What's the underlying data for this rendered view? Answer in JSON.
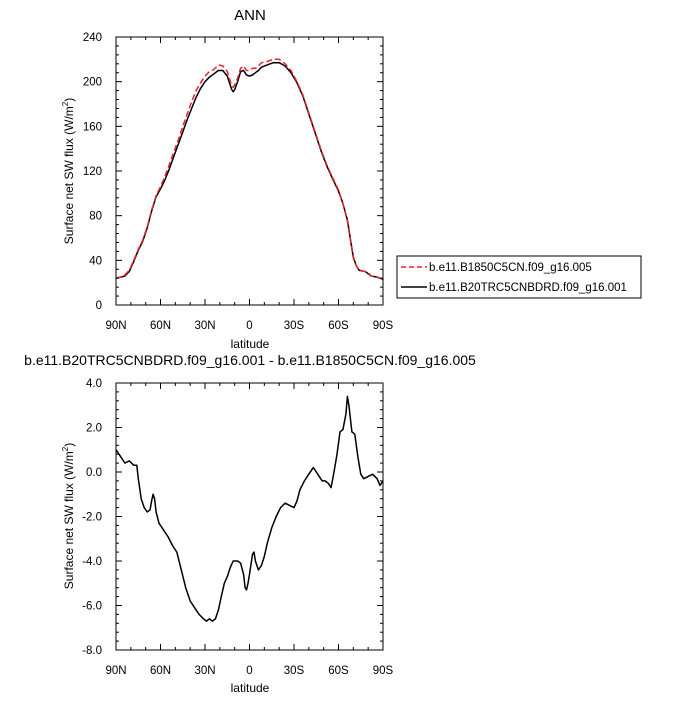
{
  "chart_data": [
    {
      "type": "line",
      "title": "ANN",
      "xlabel": "latitude",
      "ylabel": "Surface net SW flux (W/m²)",
      "ylabel_parts": [
        "Surface net SW flux (W/m",
        "2",
        ")"
      ],
      "x_ticks": [
        "90N",
        "60N",
        "30N",
        "0",
        "30S",
        "60S",
        "90S"
      ],
      "x_tick_values": [
        90,
        60,
        30,
        0,
        -30,
        -60,
        -90
      ],
      "xlim": [
        90,
        -90
      ],
      "ylim": [
        0,
        240
      ],
      "y_ticks": [
        "0",
        "40",
        "80",
        "120",
        "160",
        "200",
        "240"
      ],
      "y_tick_values": [
        0,
        40,
        80,
        120,
        160,
        200,
        240
      ],
      "legend": {
        "placement": "right"
      },
      "series": [
        {
          "name": "b.e11.B1850C5CN.f09_g16.005",
          "color": "#e8242b",
          "dash": "dashed",
          "points": [
            [
              90,
              24
            ],
            [
              87,
              25
            ],
            [
              84,
              27
            ],
            [
              81,
              31
            ],
            [
              78,
              40
            ],
            [
              75,
              50
            ],
            [
              72,
              58
            ],
            [
              69,
              70
            ],
            [
              66,
              85
            ],
            [
              63,
              98
            ],
            [
              60,
              106
            ],
            [
              57,
              115
            ],
            [
              54,
              126
            ],
            [
              51,
              137
            ],
            [
              48,
              148
            ],
            [
              45,
              160
            ],
            [
              42,
              171
            ],
            [
              39,
              182
            ],
            [
              36,
              192
            ],
            [
              33,
              199
            ],
            [
              30,
              205
            ],
            [
              27,
              209
            ],
            [
              24,
              211
            ],
            [
              21,
              215
            ],
            [
              18,
              214
            ],
            [
              15,
              209
            ],
            [
              12,
              196
            ],
            [
              11,
              195
            ],
            [
              10,
              197
            ],
            [
              8,
              203
            ],
            [
              6,
              212
            ],
            [
              4,
              214
            ],
            [
              2,
              210
            ],
            [
              0,
              210
            ],
            [
              -2,
              212
            ],
            [
              -4,
              212
            ],
            [
              -6,
              214
            ],
            [
              -8,
              217
            ],
            [
              -12,
              218
            ],
            [
              -16,
              220
            ],
            [
              -20,
              220
            ],
            [
              -24,
              216
            ],
            [
              -28,
              210
            ],
            [
              -32,
              200
            ],
            [
              -36,
              188
            ],
            [
              -40,
              172
            ],
            [
              -44,
              156
            ],
            [
              -48,
              140
            ],
            [
              -52,
              126
            ],
            [
              -56,
              114
            ],
            [
              -60,
              103
            ],
            [
              -63,
              91
            ],
            [
              -66,
              75
            ],
            [
              -68,
              58
            ],
            [
              -70,
              42
            ],
            [
              -72,
              35
            ],
            [
              -74,
              31
            ],
            [
              -78,
              30
            ],
            [
              -80,
              29
            ],
            [
              -82,
              26
            ],
            [
              -86,
              25
            ],
            [
              -90,
              23
            ]
          ]
        },
        {
          "name": "b.e11.B20TRC5CNBDRD.f09_g16.001",
          "color": "#000000",
          "dash": "solid",
          "points": [
            [
              90,
              24
            ],
            [
              87,
              25
            ],
            [
              84,
              26
            ],
            [
              81,
              30
            ],
            [
              78,
              39
            ],
            [
              75,
              49
            ],
            [
              72,
              57
            ],
            [
              69,
              69
            ],
            [
              66,
              84
            ],
            [
              63,
              97
            ],
            [
              60,
              104
            ],
            [
              57,
              112
            ],
            [
              54,
              122
            ],
            [
              51,
              133
            ],
            [
              48,
              144
            ],
            [
              45,
              155
            ],
            [
              42,
              166
            ],
            [
              39,
              176
            ],
            [
              36,
              186
            ],
            [
              33,
              194
            ],
            [
              30,
              200
            ],
            [
              27,
              204
            ],
            [
              24,
              207
            ],
            [
              21,
              210
            ],
            [
              18,
              210
            ],
            [
              15,
              205
            ],
            [
              12,
              193
            ],
            [
              11,
              191
            ],
            [
              10,
              193
            ],
            [
              8,
              200
            ],
            [
              6,
              209
            ],
            [
              4,
              210
            ],
            [
              2,
              206
            ],
            [
              0,
              205
            ],
            [
              -2,
              206
            ],
            [
              -4,
              208
            ],
            [
              -6,
              210
            ],
            [
              -8,
              213
            ],
            [
              -12,
              215
            ],
            [
              -16,
              217
            ],
            [
              -20,
              217
            ],
            [
              -24,
              214
            ],
            [
              -28,
              208
            ],
            [
              -32,
              199
            ],
            [
              -36,
              187
            ],
            [
              -40,
              171
            ],
            [
              -44,
              155
            ],
            [
              -48,
              139
            ],
            [
              -52,
              125
            ],
            [
              -56,
              113
            ],
            [
              -60,
              102
            ],
            [
              -63,
              91
            ],
            [
              -66,
              76
            ],
            [
              -68,
              59
            ],
            [
              -70,
              43
            ],
            [
              -72,
              35
            ],
            [
              -74,
              31
            ],
            [
              -78,
              30
            ],
            [
              -80,
              28
            ],
            [
              -82,
              26
            ],
            [
              -86,
              25
            ],
            [
              -90,
              23
            ]
          ]
        }
      ]
    },
    {
      "type": "line",
      "title": "b.e11.B20TRC5CNBDRD.f09_g16.001 - b.e11.B1850C5CN.f09_g16.005",
      "xlabel": "latitude",
      "ylabel": "Surface net SW flux (W/m²)",
      "ylabel_parts": [
        "Surface net SW flux (W/m",
        "2",
        ")"
      ],
      "x_ticks": [
        "90N",
        "60N",
        "30N",
        "0",
        "30S",
        "60S",
        "90S"
      ],
      "x_tick_values": [
        90,
        60,
        30,
        0,
        -30,
        -60,
        -90
      ],
      "xlim": [
        90,
        -90
      ],
      "ylim": [
        -8,
        4
      ],
      "y_ticks": [
        "-8.0",
        "-6.0",
        "-4.0",
        "-2.0",
        "0.0",
        "2.0",
        "4.0"
      ],
      "y_tick_values": [
        -8,
        -6,
        -4,
        -2,
        0,
        2,
        4
      ],
      "series": [
        {
          "color": "#000000",
          "dash": "solid",
          "points": [
            [
              90,
              1.0
            ],
            [
              87,
              0.7
            ],
            [
              84,
              0.4
            ],
            [
              81,
              0.5
            ],
            [
              78,
              0.3
            ],
            [
              76,
              0.3
            ],
            [
              75,
              -0.3
            ],
            [
              73,
              -1.2
            ],
            [
              71,
              -1.6
            ],
            [
              69,
              -1.8
            ],
            [
              67,
              -1.7
            ],
            [
              66,
              -1.3
            ],
            [
              65,
              -1.0
            ],
            [
              64,
              -1.2
            ],
            [
              63,
              -1.8
            ],
            [
              61,
              -2.3
            ],
            [
              58,
              -2.6
            ],
            [
              55,
              -2.9
            ],
            [
              52,
              -3.3
            ],
            [
              49,
              -3.6
            ],
            [
              46,
              -4.4
            ],
            [
              43,
              -5.2
            ],
            [
              40,
              -5.8
            ],
            [
              37,
              -6.1
            ],
            [
              34,
              -6.4
            ],
            [
              31,
              -6.6
            ],
            [
              29,
              -6.7
            ],
            [
              27,
              -6.6
            ],
            [
              25,
              -6.7
            ],
            [
              23,
              -6.6
            ],
            [
              21,
              -6.2
            ],
            [
              19,
              -5.6
            ],
            [
              17,
              -5.0
            ],
            [
              15,
              -4.7
            ],
            [
              13,
              -4.3
            ],
            [
              11,
              -4.0
            ],
            [
              8,
              -4.0
            ],
            [
              6,
              -4.1
            ],
            [
              4,
              -4.6
            ],
            [
              3,
              -5.2
            ],
            [
              2,
              -5.3
            ],
            [
              1,
              -5.0
            ],
            [
              0,
              -4.6
            ],
            [
              -2,
              -3.7
            ],
            [
              -3,
              -3.6
            ],
            [
              -4,
              -4.0
            ],
            [
              -6,
              -4.4
            ],
            [
              -8,
              -4.2
            ],
            [
              -10,
              -3.8
            ],
            [
              -12,
              -3.2
            ],
            [
              -15,
              -2.5
            ],
            [
              -18,
              -2.0
            ],
            [
              -21,
              -1.6
            ],
            [
              -24,
              -1.4
            ],
            [
              -27,
              -1.5
            ],
            [
              -30,
              -1.6
            ],
            [
              -32,
              -1.3
            ],
            [
              -34,
              -0.8
            ],
            [
              -37,
              -0.4
            ],
            [
              -40,
              -0.1
            ],
            [
              -43,
              0.2
            ],
            [
              -45,
              0.0
            ],
            [
              -47,
              -0.2
            ],
            [
              -49,
              -0.4
            ],
            [
              -51,
              -0.4
            ],
            [
              -53,
              -0.5
            ],
            [
              -55,
              -0.7
            ],
            [
              -57,
              0.0
            ],
            [
              -59,
              0.8
            ],
            [
              -61,
              1.8
            ],
            [
              -63,
              1.9
            ],
            [
              -65,
              2.6
            ],
            [
              -66,
              3.4
            ],
            [
              -67,
              3.0
            ],
            [
              -69,
              1.8
            ],
            [
              -71,
              1.7
            ],
            [
              -73,
              0.7
            ],
            [
              -75,
              -0.1
            ],
            [
              -77,
              -0.3
            ],
            [
              -80,
              -0.2
            ],
            [
              -83,
              -0.1
            ],
            [
              -86,
              -0.3
            ],
            [
              -88,
              -0.6
            ],
            [
              -90,
              -0.4
            ]
          ]
        }
      ]
    }
  ]
}
